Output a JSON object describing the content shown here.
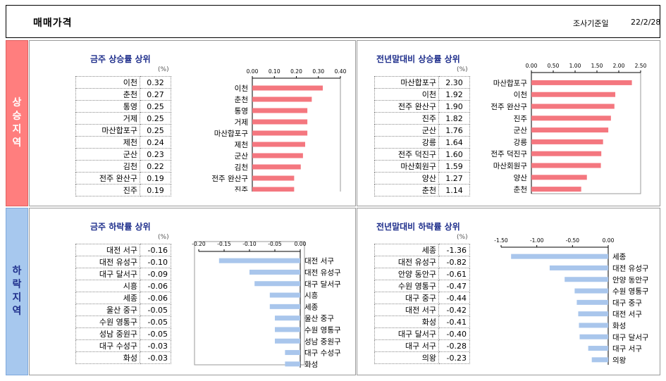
{
  "header": {
    "title": "매매가격",
    "date_label": "조사기준일",
    "date_value": "22/2/28"
  },
  "side": {
    "rise": "상승지역",
    "fall": "하락지역"
  },
  "unit": "(%)",
  "chart_data": [
    {
      "type": "bar",
      "orientation": "horizontal",
      "title": "금주 상승률 상위",
      "categories": [
        "이천",
        "춘천",
        "통영",
        "거제",
        "마산합포구",
        "제천",
        "군산",
        "김천",
        "전주 완산구",
        "진주"
      ],
      "values": [
        0.32,
        0.27,
        0.25,
        0.25,
        0.25,
        0.24,
        0.23,
        0.22,
        0.19,
        0.19
      ],
      "table_values": [
        "0.32",
        "0.27",
        "0.25",
        "0.25",
        "0.25",
        "0.24",
        "0.23",
        "0.22",
        "0.19",
        "0.19"
      ],
      "xlim": [
        0,
        0.4
      ],
      "ticks": [
        "0.00",
        "0.10",
        "0.20",
        "0.30",
        "0.40"
      ],
      "color": "#f4777f"
    },
    {
      "type": "bar",
      "orientation": "horizontal",
      "title": "전년말대비 상승률 상위",
      "categories": [
        "마산합포구",
        "이천",
        "전주 완산구",
        "진주",
        "군산",
        "강릉",
        "전주 덕진구",
        "마산회원구",
        "양산",
        "춘천"
      ],
      "values": [
        2.3,
        1.92,
        1.9,
        1.82,
        1.76,
        1.64,
        1.6,
        1.59,
        1.27,
        1.14
      ],
      "table_values": [
        "2.30",
        "1.92",
        "1.90",
        "1.82",
        "1.76",
        "1.64",
        "1.60",
        "1.59",
        "1.27",
        "1.14"
      ],
      "xlim": [
        0,
        2.5
      ],
      "ticks": [
        "0.00",
        "0.50",
        "1.00",
        "1.50",
        "2.00",
        "2.50"
      ],
      "color": "#f4777f"
    },
    {
      "type": "bar",
      "orientation": "horizontal",
      "title": "금주 하락률 상위",
      "categories": [
        "대전 서구",
        "대전 유성구",
        "대구 달서구",
        "시흥",
        "세종",
        "울산 중구",
        "수원 영통구",
        "성남 중원구",
        "대구 수성구",
        "화성"
      ],
      "values": [
        -0.16,
        -0.1,
        -0.09,
        -0.06,
        -0.06,
        -0.05,
        -0.05,
        -0.05,
        -0.03,
        -0.03
      ],
      "table_values": [
        "-0.16",
        "-0.10",
        "-0.09",
        "-0.06",
        "-0.06",
        "-0.05",
        "-0.05",
        "-0.05",
        "-0.03",
        "-0.03"
      ],
      "xlim": [
        -0.2,
        0.0
      ],
      "ticks": [
        "-0.20",
        "-0.15",
        "-0.10",
        "-0.05",
        "0.00"
      ],
      "color": "#a9c6ec"
    },
    {
      "type": "bar",
      "orientation": "horizontal",
      "title": "전년말대비 하락률 상위",
      "categories": [
        "세종",
        "대전 유성구",
        "안양 동안구",
        "수원 영통구",
        "대구 중구",
        "대전 서구",
        "화성",
        "대구 달서구",
        "대구 서구",
        "의왕"
      ],
      "values": [
        -1.36,
        -0.82,
        -0.61,
        -0.47,
        -0.44,
        -0.42,
        -0.41,
        -0.4,
        -0.28,
        -0.23
      ],
      "table_values": [
        "-1.36",
        "-0.82",
        "-0.61",
        "-0.47",
        "-0.44",
        "-0.42",
        "-0.41",
        "-0.40",
        "-0.28",
        "-0.23"
      ],
      "xlim": [
        -1.5,
        0.0
      ],
      "ticks": [
        "-1.50",
        "-1.00",
        "-0.50",
        "0.00"
      ],
      "color": "#a9c6ec"
    }
  ]
}
